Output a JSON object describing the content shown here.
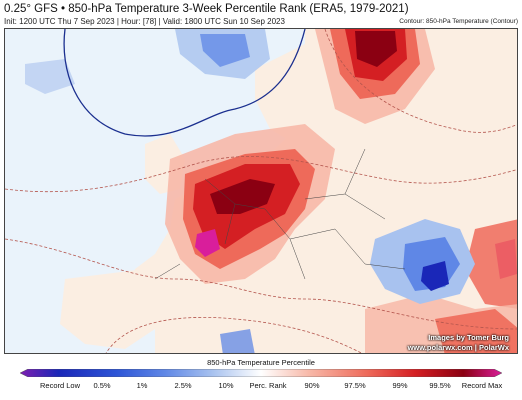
{
  "header": {
    "title": "0.25° GFS • 850-hPa Temperature 3-Week Percentile Rank (ERA5, 1979-2021)",
    "subtitle": "Init: 1200 UTC Thu 7 Sep 2023 | Hour: [78] | Valid: 1800 UTC Sun 10 Sep 2023",
    "contour_note": "Contour: 850-hPa Temperature (Contour)"
  },
  "credits": {
    "author": "Images by Tomer Burg",
    "sites": "www.polarwx.com | PolarWx"
  },
  "legend": {
    "title": "850-hPa Temperature Percentile",
    "labels": [
      "Record Low",
      "0.5%",
      "1%",
      "2.5%",
      "10%",
      "Perc. Rank",
      "90%",
      "97.5%",
      "99%",
      "99.5%",
      "Record Max"
    ],
    "colors": [
      "#7e1fb0",
      "#1a27b8",
      "#2d55d6",
      "#5f87e6",
      "#a8c2ef",
      "#ffffff",
      "#f7b8a8",
      "#ee6a5a",
      "#d41f23",
      "#8b0012",
      "#d91e9b"
    ]
  },
  "map_colors": {
    "ocean": "#eaf3fb",
    "land_neutral": "#fbeee2",
    "warm_light": "#f7b8a8",
    "warm": "#ee6a5a",
    "warm_strong": "#d41f23",
    "warm_extreme": "#8b0012",
    "record_max": "#d91e9b",
    "cool_light": "#a8c2ef",
    "cool": "#5f87e6",
    "cool_strong": "#1a27b8",
    "contour_warm": "#b4564e",
    "contour_cool": "#1b2f8f"
  }
}
